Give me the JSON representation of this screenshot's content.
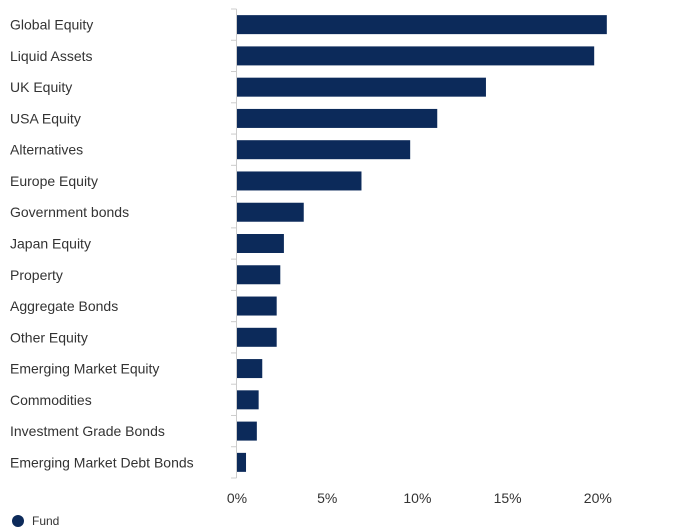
{
  "chart_data": {
    "type": "bar",
    "orientation": "horizontal",
    "categories": [
      "Global Equity",
      "Liquid Assets",
      "UK Equity",
      "USA Equity",
      "Alternatives",
      "Europe Equity",
      "Government bonds",
      "Japan Equity",
      "Property",
      "Aggregate Bonds",
      "Other Equity",
      "Emerging Market Equity",
      "Commodities",
      "Investment Grade Bonds",
      "Emerging Market Debt Bonds"
    ],
    "series": [
      {
        "name": "Fund",
        "values": [
          20.5,
          19.8,
          13.8,
          11.1,
          9.6,
          6.9,
          3.7,
          2.6,
          2.4,
          2.2,
          2.2,
          1.4,
          1.2,
          1.1,
          0.5
        ],
        "color": "#0c2a5a"
      }
    ],
    "xlim": [
      0,
      25
    ],
    "xticks": [
      0,
      5,
      10,
      15,
      20
    ],
    "tick_format": "%",
    "grid": false,
    "legend_position": "bottom-left",
    "xlabel": "",
    "ylabel": "",
    "title": ""
  },
  "colors": {
    "bar": "#0c2a5a",
    "axis": "#cccccc",
    "text": "#333333"
  }
}
